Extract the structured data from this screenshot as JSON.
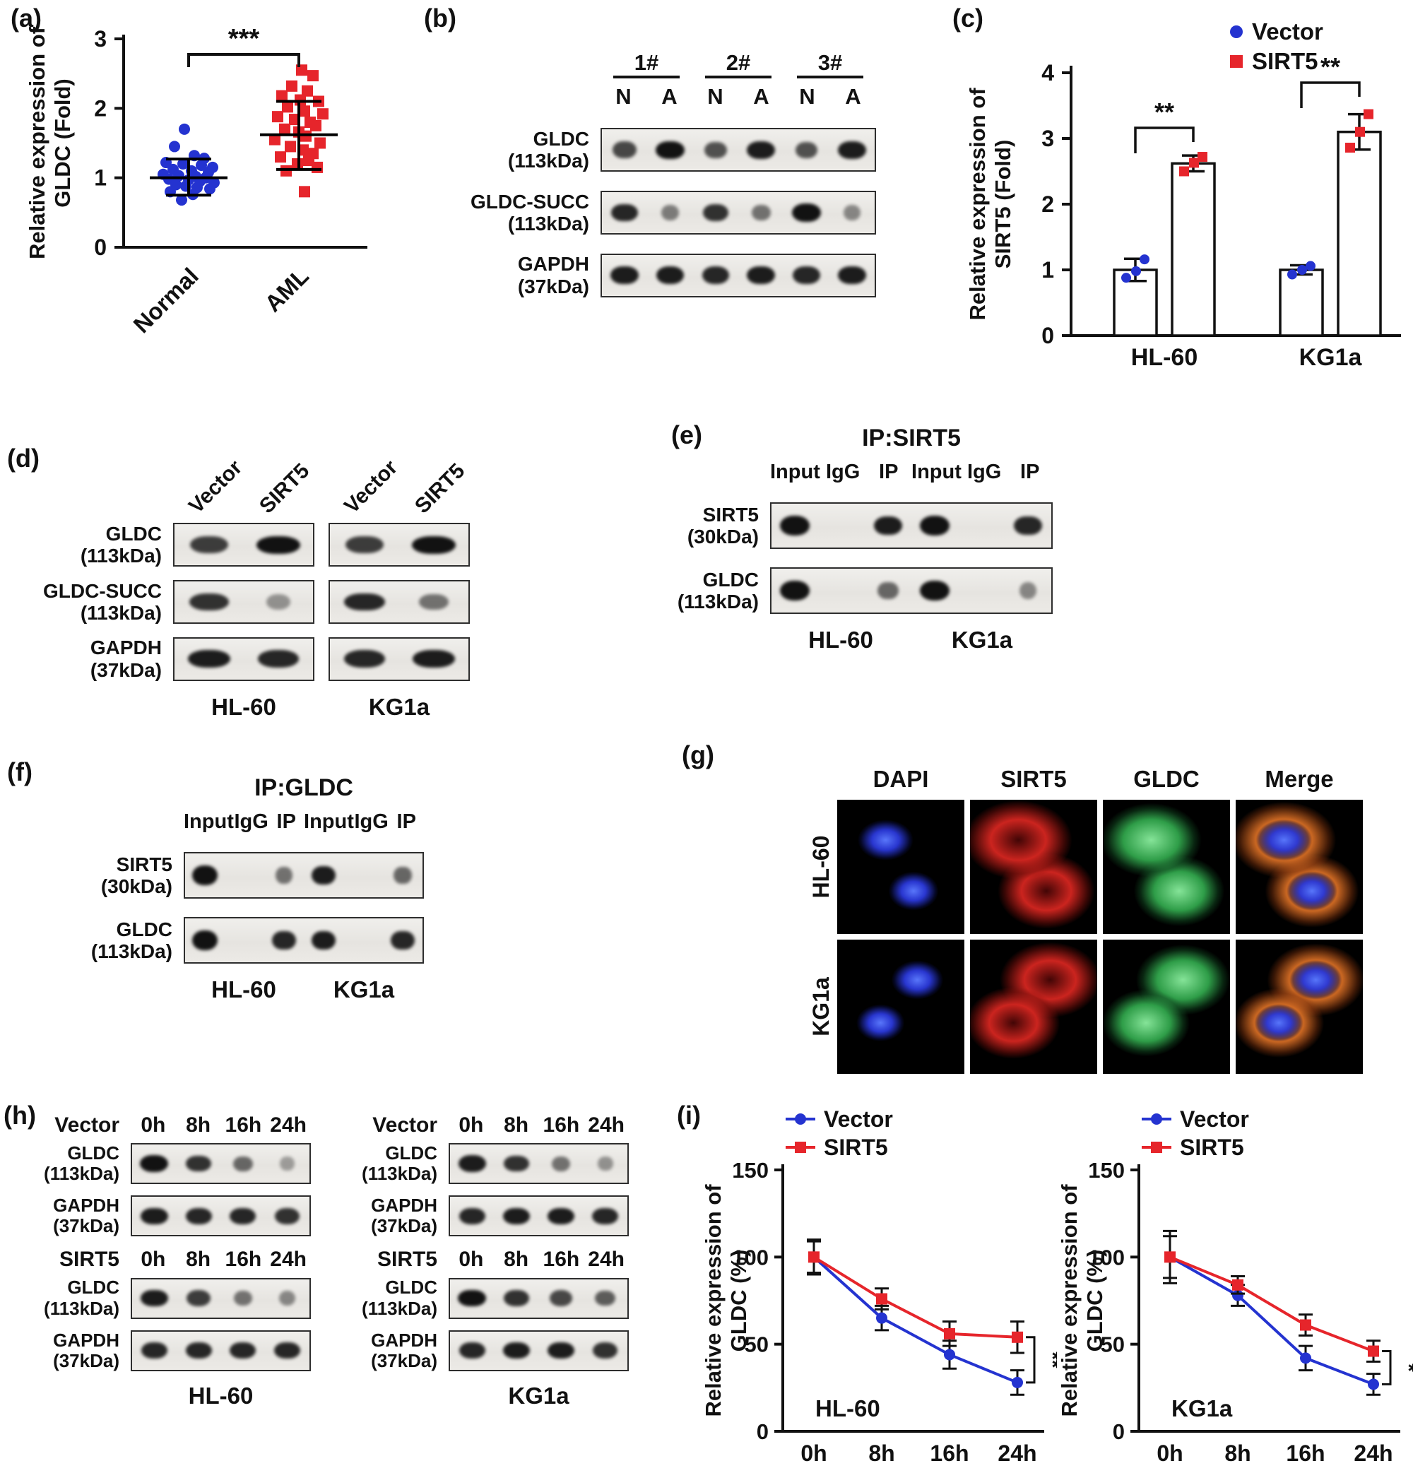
{
  "panel_tags": {
    "a": "(a)",
    "b": "(b)",
    "c": "(c)",
    "d": "(d)",
    "e": "(e)",
    "f": "(f)",
    "g": "(g)",
    "h": "(h)",
    "i": "(i)"
  },
  "colors": {
    "vector_blue": "#2433d0",
    "sirt5_red": "#e6252b",
    "axis": "#111111",
    "dapi_blue": "#3b4ae8",
    "if_red": "#e12822",
    "if_green": "#37b955",
    "merge_orange": "#eb7828"
  },
  "chart_data": [
    {
      "panel": "a",
      "type": "scatter",
      "ylabel_line1": "Relative expression of",
      "ylabel_line2": "GLDC (Fold)",
      "ylim": [
        0,
        3
      ],
      "yticks": [
        0,
        1,
        2,
        3
      ],
      "sig": "***",
      "groups": [
        {
          "name": "Normal",
          "marker": "circle",
          "color": "#2433d0",
          "mean": 1.0,
          "err_lo": 0.75,
          "err_hi": 1.27,
          "points": [
            [
              -6,
              1.7
            ],
            [
              -20,
              1.45
            ],
            [
              8,
              1.32
            ],
            [
              22,
              1.28
            ],
            [
              -32,
              1.22
            ],
            [
              -8,
              1.2
            ],
            [
              18,
              1.18
            ],
            [
              34,
              1.15
            ],
            [
              -22,
              1.12
            ],
            [
              4,
              1.1
            ],
            [
              28,
              1.08
            ],
            [
              -36,
              1.05
            ],
            [
              -14,
              1.03
            ],
            [
              10,
              1.02
            ],
            [
              24,
              1.0
            ],
            [
              -28,
              0.98
            ],
            [
              0,
              0.97
            ],
            [
              16,
              0.95
            ],
            [
              36,
              0.93
            ],
            [
              -18,
              0.9
            ],
            [
              -4,
              0.88
            ],
            [
              12,
              0.86
            ],
            [
              30,
              0.84
            ],
            [
              -26,
              0.8
            ],
            [
              6,
              0.76
            ],
            [
              -10,
              0.68
            ]
          ]
        },
        {
          "name": "AML",
          "marker": "square",
          "color": "#e6252b",
          "mean": 1.62,
          "err_lo": 1.12,
          "err_hi": 2.1,
          "points": [
            [
              4,
              2.55
            ],
            [
              20,
              2.47
            ],
            [
              -10,
              2.32
            ],
            [
              12,
              2.25
            ],
            [
              -24,
              2.18
            ],
            [
              2,
              2.12
            ],
            [
              28,
              2.1
            ],
            [
              -16,
              2.02
            ],
            [
              8,
              1.96
            ],
            [
              34,
              1.92
            ],
            [
              -30,
              1.88
            ],
            [
              -6,
              1.84
            ],
            [
              16,
              1.8
            ],
            [
              24,
              1.75
            ],
            [
              -20,
              1.7
            ],
            [
              0,
              1.66
            ],
            [
              10,
              1.6
            ],
            [
              -34,
              1.55
            ],
            [
              30,
              1.5
            ],
            [
              -12,
              1.45
            ],
            [
              6,
              1.4
            ],
            [
              20,
              1.35
            ],
            [
              -26,
              1.3
            ],
            [
              14,
              1.25
            ],
            [
              -2,
              1.2
            ],
            [
              26,
              1.15
            ],
            [
              -18,
              1.1
            ],
            [
              8,
              0.8
            ]
          ]
        }
      ]
    },
    {
      "panel": "c",
      "type": "bar",
      "ylabel_line1": "Relative expression of",
      "ylabel_line2": "SIRT5 (Fold)",
      "ylim": [
        0,
        4
      ],
      "yticks": [
        0,
        1,
        2,
        3,
        4
      ],
      "legend": [
        {
          "name": "Vector",
          "marker": "circle",
          "color": "#2433d0"
        },
        {
          "name": "SIRT5",
          "marker": "square",
          "color": "#e6252b"
        }
      ],
      "groups": [
        {
          "name": "HL-60",
          "sig": "**",
          "bars": [
            {
              "series": "Vector",
              "mean": 1.0,
              "err": 0.17,
              "points": [
                0.88,
                0.98,
                1.16
              ]
            },
            {
              "series": "SIRT5",
              "mean": 2.62,
              "err": 0.12,
              "points": [
                2.5,
                2.63,
                2.72
              ]
            }
          ]
        },
        {
          "name": "KG1a",
          "sig": "**",
          "bars": [
            {
              "series": "Vector",
              "mean": 1.0,
              "err": 0.07,
              "points": [
                0.93,
                1.0,
                1.06
              ]
            },
            {
              "series": "SIRT5",
              "mean": 3.1,
              "err": 0.27,
              "points": [
                2.86,
                3.1,
                3.37
              ]
            }
          ]
        }
      ]
    },
    {
      "panel": "i",
      "type": "line",
      "cell": "HL-60",
      "sig": "**",
      "ylabel_line1": "Relative expression of",
      "ylabel_line2": "GLDC (%)",
      "ylim": [
        0,
        150
      ],
      "yticks": [
        0,
        50,
        100,
        150
      ],
      "x": [
        "0h",
        "8h",
        "16h",
        "24h"
      ],
      "series": [
        {
          "name": "Vector",
          "marker": "circle",
          "color": "#2433d0",
          "values": [
            100,
            65,
            44,
            28
          ],
          "err": [
            10,
            7,
            8,
            7
          ]
        },
        {
          "name": "SIRT5",
          "marker": "square",
          "color": "#e6252b",
          "values": [
            100,
            76,
            56,
            54
          ],
          "err": [
            9,
            6,
            7,
            9
          ]
        }
      ]
    },
    {
      "panel": "i",
      "type": "line",
      "cell": "KG1a",
      "sig": "*",
      "ylabel_line1": "Relative expression of",
      "ylabel_line2": "GLDC (%)",
      "ylim": [
        0,
        150
      ],
      "yticks": [
        0,
        50,
        100,
        150
      ],
      "x": [
        "0h",
        "8h",
        "16h",
        "24h"
      ],
      "series": [
        {
          "name": "Vector",
          "marker": "circle",
          "color": "#2433d0",
          "values": [
            100,
            78,
            42,
            27
          ],
          "err": [
            15,
            6,
            7,
            6
          ]
        },
        {
          "name": "SIRT5",
          "marker": "square",
          "color": "#e6252b",
          "values": [
            100,
            84,
            61,
            46
          ],
          "err": [
            12,
            5,
            6,
            6
          ]
        }
      ]
    }
  ],
  "blots": {
    "b": {
      "group_headers": [
        "1#",
        "2#",
        "3#"
      ],
      "lane_headers": [
        "N",
        "A",
        "N",
        "A",
        "N",
        "A"
      ],
      "rows": [
        {
          "label": [
            "GLDC",
            "(113kDa)"
          ],
          "lanes": [
            0.75,
            1.0,
            0.7,
            0.95,
            0.7,
            0.95
          ]
        },
        {
          "label": [
            "GLDC-SUCC",
            "(113kDa)"
          ],
          "lanes": [
            0.9,
            0.5,
            0.85,
            0.55,
            1.0,
            0.45
          ]
        },
        {
          "label": [
            "GAPDH",
            "(37kDa)"
          ],
          "lanes": [
            0.95,
            0.95,
            0.9,
            0.95,
            0.9,
            0.95
          ]
        }
      ]
    },
    "d": {
      "col_headers": [
        "Vector",
        "SIRT5",
        "Vector",
        "SIRT5"
      ],
      "rows": [
        {
          "label": [
            "GLDC",
            "(113kDa)"
          ],
          "boxes": [
            [
              0.8,
              1.0
            ],
            [
              0.8,
              1.0
            ]
          ]
        },
        {
          "label": [
            "GLDC-SUCC",
            "(113kDa)"
          ],
          "boxes": [
            [
              0.85,
              0.4
            ],
            [
              0.9,
              0.55
            ]
          ]
        },
        {
          "label": [
            "GAPDH",
            "(37kDa)"
          ],
          "boxes": [
            [
              0.95,
              0.9
            ],
            [
              0.9,
              0.95
            ]
          ]
        }
      ],
      "cells": [
        "HL-60",
        "KG1a"
      ]
    },
    "e": {
      "title": "IP:SIRT5",
      "lane_headers": [
        "Input",
        "IgG",
        "IP",
        "Input",
        "IgG",
        "IP"
      ],
      "rows": [
        {
          "label": [
            "SIRT5",
            "(30kDa)"
          ],
          "lanes": [
            1.0,
            0,
            0.95,
            1.0,
            0,
            0.9
          ]
        },
        {
          "label": [
            "GLDC",
            "(113kDa)"
          ],
          "lanes": [
            1.0,
            0,
            0.6,
            1.0,
            0,
            0.45
          ]
        }
      ],
      "cells": [
        "HL-60",
        "KG1a"
      ]
    },
    "f": {
      "title": "IP:GLDC",
      "lane_headers": [
        "Input",
        "IgG",
        "IP",
        "Input",
        "IgG",
        "IP"
      ],
      "rows": [
        {
          "label": [
            "SIRT5",
            "(30kDa)"
          ],
          "lanes": [
            1.0,
            0,
            0.55,
            0.95,
            0,
            0.6
          ]
        },
        {
          "label": [
            "GLDC",
            "(113kDa)"
          ],
          "lanes": [
            1.0,
            0,
            0.9,
            0.95,
            0,
            0.9
          ]
        }
      ],
      "cells": [
        "HL-60",
        "KG1a"
      ]
    },
    "h": {
      "groups": [
        {
          "cell": "HL-60",
          "sections": [
            {
              "condition": "Vector",
              "times": [
                "0h",
                "8h",
                "16h",
                "24h"
              ],
              "rows": [
                {
                  "label": [
                    "GLDC",
                    "(113kDa)"
                  ],
                  "lanes": [
                    1.0,
                    0.85,
                    0.6,
                    0.35
                  ]
                },
                {
                  "label": [
                    "GAPDH",
                    "(37kDa)"
                  ],
                  "lanes": [
                    0.95,
                    0.9,
                    0.9,
                    0.85
                  ]
                }
              ]
            },
            {
              "condition": "SIRT5",
              "times": [
                "0h",
                "8h",
                "16h",
                "24h"
              ],
              "rows": [
                {
                  "label": [
                    "GLDC",
                    "(113kDa)"
                  ],
                  "lanes": [
                    0.95,
                    0.8,
                    0.55,
                    0.45
                  ]
                },
                {
                  "label": [
                    "GAPDH",
                    "(37kDa)"
                  ],
                  "lanes": [
                    0.9,
                    0.9,
                    0.9,
                    0.9
                  ]
                }
              ]
            }
          ]
        },
        {
          "cell": "KG1a",
          "sections": [
            {
              "condition": "Vector",
              "times": [
                "0h",
                "8h",
                "16h",
                "24h"
              ],
              "rows": [
                {
                  "label": [
                    "GLDC",
                    "(113kDa)"
                  ],
                  "lanes": [
                    0.95,
                    0.85,
                    0.55,
                    0.4
                  ]
                },
                {
                  "label": [
                    "GAPDH",
                    "(37kDa)"
                  ],
                  "lanes": [
                    0.9,
                    0.95,
                    0.95,
                    0.9
                  ]
                }
              ]
            },
            {
              "condition": "SIRT5",
              "times": [
                "0h",
                "8h",
                "16h",
                "24h"
              ],
              "rows": [
                {
                  "label": [
                    "GLDC",
                    "(113kDa)"
                  ],
                  "lanes": [
                    1.0,
                    0.85,
                    0.75,
                    0.65
                  ]
                },
                {
                  "label": [
                    "GAPDH",
                    "(37kDa)"
                  ],
                  "lanes": [
                    0.9,
                    0.95,
                    0.95,
                    0.85
                  ]
                }
              ]
            }
          ]
        }
      ]
    }
  },
  "if_panel": {
    "col_headers": [
      "DAPI",
      "SIRT5",
      "GLDC",
      "Merge"
    ],
    "row_headers": [
      "HL-60",
      "KG1a"
    ]
  }
}
